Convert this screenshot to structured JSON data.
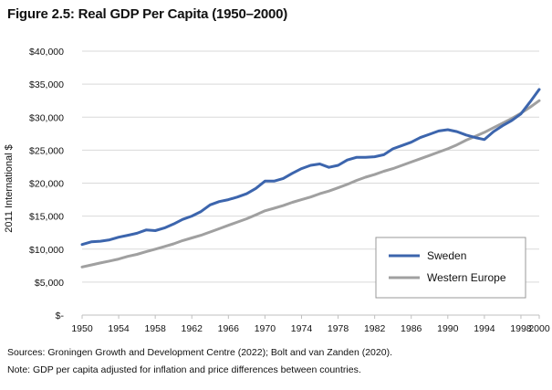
{
  "figure": {
    "title": "Figure 2.5: Real GDP Per Capita (1950–2000)",
    "sources": "Sources: Groningen Growth and Development Centre (2022); Bolt and van Zanden (2020).",
    "note": "Note: GDP per capita adjusted for inflation and price differences between countries."
  },
  "chart_data": {
    "type": "line",
    "title": "Figure 2.5: Real GDP Per Capita (1950–2000)",
    "xlabel": "",
    "ylabel": "2011 International $",
    "xlim": [
      1950,
      2000
    ],
    "ylim": [
      0,
      40000
    ],
    "x_ticks": [
      1950,
      1954,
      1958,
      1962,
      1966,
      1970,
      1974,
      1978,
      1982,
      1986,
      1990,
      1994,
      1998,
      2000
    ],
    "y_ticks": [
      0,
      5000,
      10000,
      15000,
      20000,
      25000,
      30000,
      35000,
      40000
    ],
    "y_tick_labels": [
      "$-",
      "$5,000",
      "$10,000",
      "$15,000",
      "$20,000",
      "$25,000",
      "$30,000",
      "$35,000",
      "$40,000"
    ],
    "grid": "horizontal",
    "legend_position": "bottom-right",
    "x": [
      1950,
      1951,
      1952,
      1953,
      1954,
      1955,
      1956,
      1957,
      1958,
      1959,
      1960,
      1961,
      1962,
      1963,
      1964,
      1965,
      1966,
      1967,
      1968,
      1969,
      1970,
      1971,
      1972,
      1973,
      1974,
      1975,
      1976,
      1977,
      1978,
      1979,
      1980,
      1981,
      1982,
      1983,
      1984,
      1985,
      1986,
      1987,
      1988,
      1989,
      1990,
      1991,
      1992,
      1993,
      1994,
      1995,
      1996,
      1997,
      1998,
      1999,
      2000
    ],
    "series": [
      {
        "name": "Sweden",
        "color": "#3c65ad",
        "values": [
          10700,
          11100,
          11200,
          11400,
          11800,
          12100,
          12400,
          12900,
          12800,
          13200,
          13800,
          14500,
          15000,
          15700,
          16700,
          17200,
          17500,
          17900,
          18400,
          19200,
          20300,
          20300,
          20700,
          21500,
          22200,
          22700,
          22900,
          22400,
          22700,
          23500,
          23900,
          23900,
          24000,
          24300,
          25200,
          25700,
          26200,
          26900,
          27400,
          27900,
          28100,
          27800,
          27300,
          26900,
          26600,
          27800,
          28700,
          29500,
          30500,
          32300,
          34200
        ]
      },
      {
        "name": "Western Europe",
        "color": "#a0a0a0",
        "values": [
          7300,
          7600,
          7900,
          8200,
          8500,
          8900,
          9200,
          9600,
          10000,
          10400,
          10800,
          11300,
          11700,
          12100,
          12600,
          13100,
          13600,
          14100,
          14600,
          15200,
          15800,
          16200,
          16600,
          17100,
          17500,
          17900,
          18400,
          18800,
          19300,
          19800,
          20400,
          20900,
          21300,
          21800,
          22200,
          22700,
          23200,
          23700,
          24200,
          24700,
          25200,
          25800,
          26500,
          27100,
          27700,
          28400,
          29100,
          29800,
          30600,
          31500,
          32500
        ]
      }
    ]
  }
}
